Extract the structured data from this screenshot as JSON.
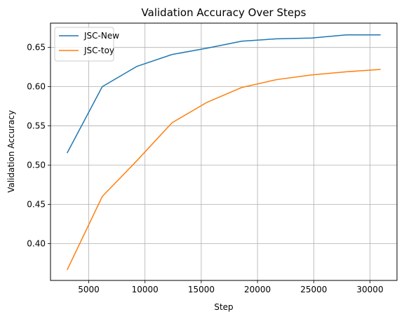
{
  "chart_data": {
    "type": "line",
    "title": "Validation Accuracy Over Steps",
    "xlabel": "Step",
    "ylabel": "Validation Accuracy",
    "xlim": [
      1600,
      32400
    ],
    "ylim": [
      0.353,
      0.681
    ],
    "xticks": [
      5000,
      10000,
      15000,
      20000,
      25000,
      30000
    ],
    "xtick_labels": [
      "5000",
      "10000",
      "15000",
      "20000",
      "25000",
      "30000"
    ],
    "yticks": [
      0.4,
      0.45,
      0.5,
      0.55,
      0.6,
      0.65
    ],
    "ytick_labels": [
      "0.40",
      "0.45",
      "0.50",
      "0.55",
      "0.60",
      "0.65"
    ],
    "grid": true,
    "legend": "top-left",
    "series": [
      {
        "name": "JSC-New",
        "color": "#1f77b4",
        "x": [
          3100,
          6200,
          9300,
          12400,
          15500,
          18600,
          21700,
          24800,
          27900,
          30900
        ],
        "y": [
          0.516,
          0.6,
          0.626,
          0.641,
          0.649,
          0.658,
          0.661,
          0.662,
          0.666,
          0.666
        ]
      },
      {
        "name": "JSC-toy",
        "color": "#ff7f0e",
        "x": [
          3100,
          6200,
          9300,
          12400,
          15500,
          18600,
          21700,
          24800,
          27900,
          30900
        ],
        "y": [
          0.367,
          0.46,
          0.506,
          0.554,
          0.58,
          0.599,
          0.609,
          0.615,
          0.619,
          0.622
        ]
      }
    ]
  }
}
